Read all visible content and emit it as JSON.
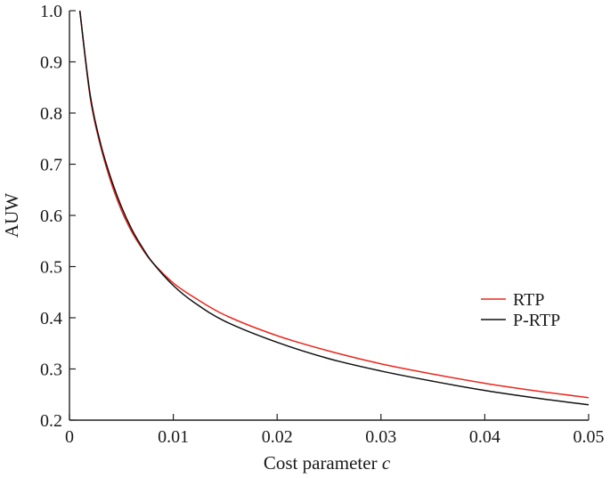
{
  "chart_data": {
    "type": "line",
    "xlabel": "Cost parameter",
    "xlabel_var": "c",
    "ylabel": "AUW",
    "xlim": [
      0,
      0.05
    ],
    "ylim": [
      0.2,
      1.0
    ],
    "x_ticks": [
      0,
      0.01,
      0.02,
      0.03,
      0.04,
      0.05
    ],
    "x_tick_labels": [
      "0",
      "0.01",
      "0.02",
      "0.03",
      "0.04",
      "0.05"
    ],
    "y_ticks": [
      0.2,
      0.3,
      0.4,
      0.5,
      0.6,
      0.7,
      0.8,
      0.9,
      1.0
    ],
    "y_tick_labels": [
      "0.2",
      "0.3",
      "0.4",
      "0.5",
      "0.6",
      "0.7",
      "0.8",
      "0.9",
      "1.0"
    ],
    "grid": false,
    "legend_position": "right",
    "series": [
      {
        "name": "RTP",
        "color": "#e8281e",
        "x": [
          0.001,
          0.002,
          0.003,
          0.004,
          0.005,
          0.006,
          0.007,
          0.008,
          0.01,
          0.012,
          0.015,
          0.02,
          0.025,
          0.03,
          0.035,
          0.04,
          0.045,
          0.05
        ],
        "y": [
          1.0,
          0.83,
          0.735,
          0.665,
          0.61,
          0.568,
          0.535,
          0.508,
          0.468,
          0.44,
          0.405,
          0.365,
          0.335,
          0.31,
          0.29,
          0.272,
          0.257,
          0.244
        ]
      },
      {
        "name": "P-RTP",
        "color": "#111111",
        "x": [
          0.001,
          0.002,
          0.003,
          0.004,
          0.005,
          0.006,
          0.007,
          0.008,
          0.01,
          0.012,
          0.015,
          0.02,
          0.025,
          0.03,
          0.035,
          0.04,
          0.045,
          0.05
        ],
        "y": [
          1.0,
          0.835,
          0.74,
          0.672,
          0.617,
          0.573,
          0.538,
          0.508,
          0.463,
          0.43,
          0.393,
          0.352,
          0.32,
          0.296,
          0.276,
          0.258,
          0.243,
          0.23
        ]
      }
    ]
  }
}
